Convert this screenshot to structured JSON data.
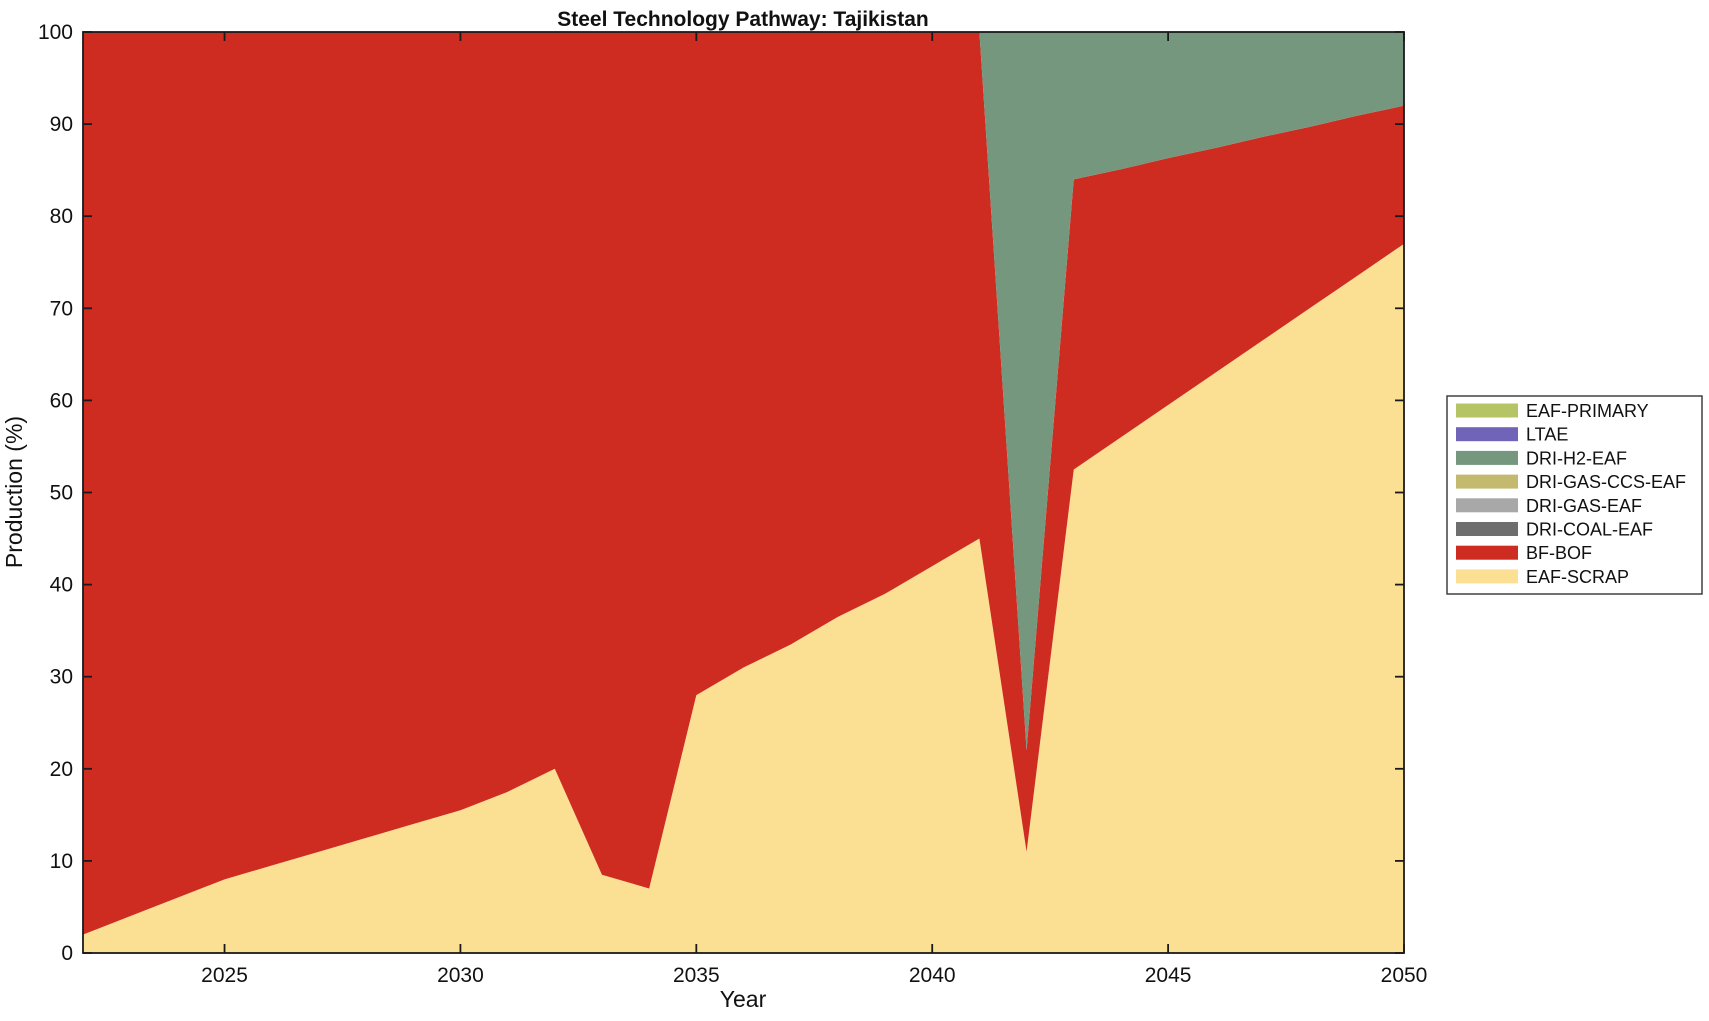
{
  "title": "Steel Technology Pathway: Tajikistan",
  "chart_data": {
    "type": "area",
    "stacked": true,
    "title": "Steel Technology Pathway: Tajikistan",
    "xlabel": "Year",
    "ylabel": "Production (%)",
    "xlim": [
      2022,
      2050
    ],
    "ylim": [
      0,
      100
    ],
    "xticks": [
      2025,
      2030,
      2035,
      2040,
      2045,
      2050
    ],
    "yticks": [
      0,
      10,
      20,
      30,
      40,
      50,
      60,
      70,
      80,
      90,
      100
    ],
    "grid": false,
    "legend_position": "right-outside",
    "x": [
      2022,
      2023,
      2024,
      2025,
      2026,
      2027,
      2028,
      2029,
      2030,
      2031,
      2032,
      2033,
      2034,
      2035,
      2036,
      2037,
      2038,
      2039,
      2040,
      2041,
      2042,
      2043,
      2044,
      2045,
      2046,
      2047,
      2048,
      2049,
      2050
    ],
    "series": [
      {
        "name": "EAF-SCRAP",
        "color": "#FBE094",
        "values": [
          2,
          4,
          6,
          8,
          9.5,
          11,
          12.5,
          14,
          15.5,
          17.5,
          20,
          8.5,
          7,
          28,
          31,
          33.5,
          36.5,
          39,
          42,
          45,
          11,
          52.5,
          56,
          59.5,
          63,
          66.5,
          70,
          73.5,
          77
        ]
      },
      {
        "name": "BF-BOF",
        "color": "#CE2B21",
        "values": [
          98,
          96,
          94,
          92,
          90.5,
          89,
          87.5,
          86,
          84.5,
          82.5,
          80,
          91.5,
          93,
          72,
          69,
          66.5,
          63.5,
          61,
          58,
          55,
          11,
          31.5,
          29.1,
          26.8,
          24.4,
          22.1,
          19.7,
          17.4,
          15
        ]
      },
      {
        "name": "DRI-COAL-EAF",
        "color": "#6E6E6E",
        "values": [
          0,
          0,
          0,
          0,
          0,
          0,
          0,
          0,
          0,
          0,
          0,
          0,
          0,
          0,
          0,
          0,
          0,
          0,
          0,
          0,
          0,
          0,
          0,
          0,
          0,
          0,
          0,
          0,
          0
        ]
      },
      {
        "name": "DRI-GAS-EAF",
        "color": "#A8A8A8",
        "values": [
          0,
          0,
          0,
          0,
          0,
          0,
          0,
          0,
          0,
          0,
          0,
          0,
          0,
          0,
          0,
          0,
          0,
          0,
          0,
          0,
          0,
          0,
          0,
          0,
          0,
          0,
          0,
          0,
          0
        ]
      },
      {
        "name": "DRI-GAS-CCS-EAF",
        "color": "#C3BA70",
        "values": [
          0,
          0,
          0,
          0,
          0,
          0,
          0,
          0,
          0,
          0,
          0,
          0,
          0,
          0,
          0,
          0,
          0,
          0,
          0,
          0,
          0,
          0,
          0,
          0,
          0,
          0,
          0,
          0,
          0
        ]
      },
      {
        "name": "DRI-H2-EAF",
        "color": "#75977E",
        "values": [
          0,
          0,
          0,
          0,
          0,
          0,
          0,
          0,
          0,
          0,
          0,
          0,
          0,
          0,
          0,
          0,
          0,
          0,
          0,
          0,
          78,
          16,
          14.9,
          13.7,
          12.6,
          11.4,
          10.3,
          9.1,
          8
        ]
      },
      {
        "name": "LTAE",
        "color": "#7064B8",
        "values": [
          0,
          0,
          0,
          0,
          0,
          0,
          0,
          0,
          0,
          0,
          0,
          0,
          0,
          0,
          0,
          0,
          0,
          0,
          0,
          0,
          0,
          0,
          0,
          0,
          0,
          0,
          0,
          0,
          0
        ]
      },
      {
        "name": "EAF-PRIMARY",
        "color": "#B5C565",
        "values": [
          0,
          0,
          0,
          0,
          0,
          0,
          0,
          0,
          0,
          0,
          0,
          0,
          0,
          0,
          0,
          0,
          0,
          0,
          0,
          0,
          0,
          0,
          0,
          0,
          0,
          0,
          0,
          0,
          0
        ]
      }
    ],
    "legend": [
      "EAF-PRIMARY",
      "LTAE",
      "DRI-H2-EAF",
      "DRI-GAS-CCS-EAF",
      "DRI-GAS-EAF",
      "DRI-COAL-EAF",
      "BF-BOF",
      "EAF-SCRAP"
    ]
  },
  "axis_color": "#1a1a1a"
}
